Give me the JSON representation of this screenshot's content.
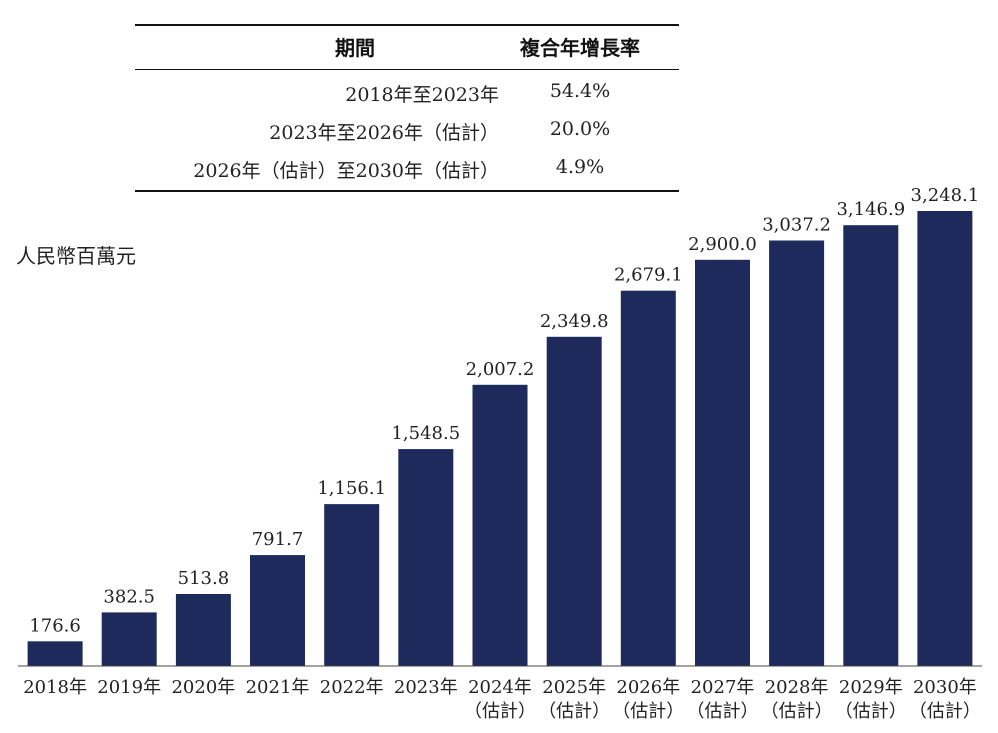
{
  "cagr_table": {
    "header_period": "期間",
    "header_rate": "複合年增長率",
    "rows": [
      {
        "period": "2018年至2023年",
        "rate": "54.4%"
      },
      {
        "period": "2023年至2026年（估計）",
        "rate": "20.0%"
      },
      {
        "period": "2026年（估計）至2030年（估計）",
        "rate": "4.9%"
      }
    ]
  },
  "chart_data": {
    "type": "bar",
    "title": "",
    "ylabel": "人民幣百萬元",
    "xlabel": "",
    "ylim": [
      0,
      3300
    ],
    "categories": [
      [
        "2018年"
      ],
      [
        "2019年"
      ],
      [
        "2020年"
      ],
      [
        "2021年"
      ],
      [
        "2022年"
      ],
      [
        "2023年"
      ],
      [
        "2024年",
        "（估計）"
      ],
      [
        "2025年",
        "（估計）"
      ],
      [
        "2026年",
        "（估計）"
      ],
      [
        "2027年",
        "（估計）"
      ],
      [
        "2028年",
        "（估計）"
      ],
      [
        "2029年",
        "（估計）"
      ],
      [
        "2030年",
        "（估計）"
      ]
    ],
    "values": [
      176.6,
      382.5,
      513.8,
      791.7,
      1156.1,
      1548.5,
      2007.2,
      2349.8,
      2679.1,
      2900.0,
      3037.2,
      3146.9,
      3248.1
    ],
    "value_labels": [
      "176.6",
      "382.5",
      "513.8",
      "791.7",
      "1,156.1",
      "1,548.5",
      "2,007.2",
      "2,349.8",
      "2,679.1",
      "2,900.0",
      "3,037.2",
      "3,146.9",
      "3,248.1"
    ],
    "bar_color": "#1f2a5c",
    "grid": false,
    "legend": "none"
  }
}
